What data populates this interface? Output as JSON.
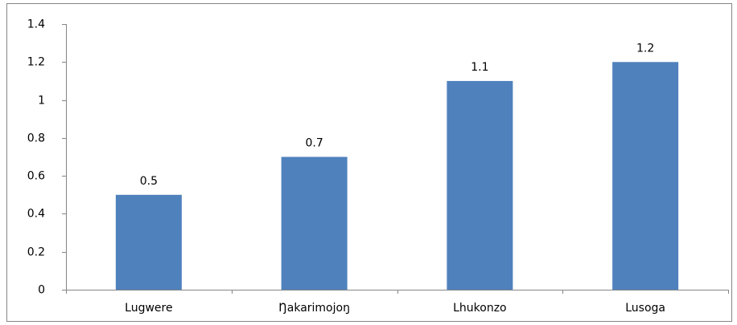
{
  "chart_data": {
    "type": "bar",
    "categories": [
      "Lugwere",
      "Ŋakarimojoŋ",
      "Lhukonzo",
      "Lusoga"
    ],
    "values": [
      0.5,
      0.7,
      1.1,
      1.2
    ],
    "color": "#4f81bd",
    "ylim": [
      0,
      1.4
    ],
    "yticks": [
      0,
      0.2,
      0.4,
      0.6,
      0.8,
      1,
      1.2,
      1.4
    ],
    "grid": false
  }
}
